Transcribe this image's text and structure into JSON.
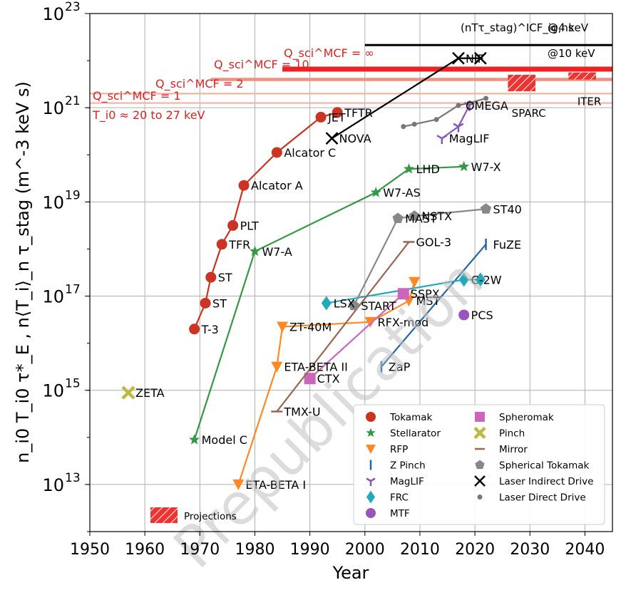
{
  "chart_data": {
    "type": "scatter",
    "title": "",
    "xlabel": "Year",
    "ylabel": "n_i0 T_i0 τ*_E ,  n⟨T_i⟩_n τ_stag (m^-3 keV s)",
    "xlim": [
      1950,
      2045
    ],
    "ylim_log10": [
      12,
      23
    ],
    "y_scale": "log",
    "grid": true,
    "watermark": "Prepublication",
    "x_ticks": [
      "1950",
      "1960",
      "1970",
      "1980",
      "1990",
      "2000",
      "2010",
      "2020",
      "2030",
      "2040"
    ],
    "y_ticks": [
      {
        "exp": 13,
        "label": "10",
        "sup": "13"
      },
      {
        "exp": 15,
        "label": "10",
        "sup": "15"
      },
      {
        "exp": 17,
        "label": "10",
        "sup": "17"
      },
      {
        "exp": 19,
        "label": "10",
        "sup": "19"
      },
      {
        "exp": 21,
        "label": "10",
        "sup": "21"
      },
      {
        "exp": 23,
        "label": "10",
        "sup": "23"
      }
    ],
    "reference_lines": [
      {
        "name": "ICF ignition @4 keV",
        "label": "@4 keV",
        "y_exp": 22.33,
        "x0": 2000,
        "x1": 2045,
        "color": "#000000",
        "style": "solid"
      },
      {
        "name": "ICF ignition @10 keV",
        "label": "@10 keV",
        "y_exp": 21.85,
        "x0": 2000,
        "x1": 2045,
        "color": "#000000",
        "style": "dotted"
      },
      {
        "name": "Q_sci = infinity",
        "y_exp": 21.82,
        "x0": 1985,
        "x1": 2045,
        "color": "#ee2222",
        "style": "thick"
      },
      {
        "name": "Q_sci = 10",
        "y_exp": 21.6,
        "x0": 1972,
        "x1": 2045,
        "color": "#f09080",
        "style": "medium"
      },
      {
        "name": "Q_sci = 2",
        "y_exp": 21.3,
        "x0": 1950,
        "x1": 2045,
        "color": "#f7b0a5",
        "style": "thin"
      },
      {
        "name": "Q_sci = 1",
        "y_exp": 21.1,
        "x0": 1950,
        "x1": 2045,
        "color": "#f7b0a5",
        "style": "thin"
      }
    ],
    "annotations_mcf": {
      "q_inf": "Q_sci^MCF = ∞",
      "q10": "Q_sci^MCF = 10",
      "q2": "Q_sci^MCF = 2",
      "q1": "Q_sci^MCF = 1",
      "temp": "T_i0 ≈ 20 to 27 keV",
      "icf": "(nTτ_stag)^ICF_ig,hs"
    },
    "series": [
      {
        "name": "Tokamak",
        "marker": "circle",
        "color": "#cc3322",
        "line": true,
        "points": [
          {
            "x": 1969,
            "y_exp": 16.3,
            "label": "T-3"
          },
          {
            "x": 1971,
            "y_exp": 16.85,
            "label": "ST"
          },
          {
            "x": 1972,
            "y_exp": 17.4,
            "label": "ST"
          },
          {
            "x": 1974,
            "y_exp": 18.1,
            "label": "TFR"
          },
          {
            "x": 1976,
            "y_exp": 18.5,
            "label": "PLT"
          },
          {
            "x": 1978,
            "y_exp": 19.35,
            "label": "Alcator A"
          },
          {
            "x": 1984,
            "y_exp": 20.05,
            "label": "Alcator C"
          },
          {
            "x": 1992,
            "y_exp": 20.8,
            "label": "JET"
          },
          {
            "x": 1995,
            "y_exp": 20.9,
            "label": "TFTR"
          }
        ]
      },
      {
        "name": "Stellarator",
        "marker": "star",
        "color": "#339944",
        "line": true,
        "points": [
          {
            "x": 1969,
            "y_exp": 13.95,
            "label": "Model C"
          },
          {
            "x": 1980,
            "y_exp": 17.95,
            "label": "W7-A"
          },
          {
            "x": 2002,
            "y_exp": 19.2,
            "label": "W7-AS"
          },
          {
            "x": 2008,
            "y_exp": 19.7,
            "label": "LHD"
          },
          {
            "x": 2018,
            "y_exp": 19.75,
            "label": "W7-X"
          }
        ]
      },
      {
        "name": "RFP",
        "marker": "triangle-down",
        "color": "#ff8822",
        "line": true,
        "points": [
          {
            "x": 1977,
            "y_exp": 13.0,
            "label": "ETA-BETA I"
          },
          {
            "x": 1984,
            "y_exp": 15.5,
            "label": "ETA-BETA II"
          },
          {
            "x": 1985,
            "y_exp": 16.35,
            "label": "ZT-40M"
          },
          {
            "x": 2001,
            "y_exp": 16.45,
            "label": "RFX-mod"
          },
          {
            "x": 2008,
            "y_exp": 16.9,
            "label": "MST"
          },
          {
            "x": 2009,
            "y_exp": 17.3,
            "label": ""
          }
        ]
      },
      {
        "name": "Z Pinch",
        "marker": "vline",
        "color": "#2266aa",
        "line": true,
        "points": [
          {
            "x": 2003,
            "y_exp": 15.5,
            "label": "ZaP"
          },
          {
            "x": 2022,
            "y_exp": 18.1,
            "label": "FuZE"
          }
        ]
      },
      {
        "name": "MagLIF",
        "marker": "tri",
        "color": "#8855bb",
        "line": true,
        "points": [
          {
            "x": 2014,
            "y_exp": 20.35,
            "label": "MagLIF"
          },
          {
            "x": 2017,
            "y_exp": 20.6,
            "label": ""
          },
          {
            "x": 2019,
            "y_exp": 21.05,
            "label": ""
          }
        ]
      },
      {
        "name": "FRC",
        "marker": "diamond",
        "color": "#22aabb",
        "line": true,
        "points": [
          {
            "x": 1993,
            "y_exp": 16.85,
            "label": "LSX"
          },
          {
            "x": 2018,
            "y_exp": 17.35,
            "label": "C-2W"
          },
          {
            "x": 2021,
            "y_exp": 17.35,
            "label": ""
          }
        ]
      },
      {
        "name": "MTF",
        "marker": "circle",
        "color": "#9955bb",
        "line": false,
        "points": [
          {
            "x": 2018,
            "y_exp": 16.6,
            "label": "PCS"
          }
        ]
      },
      {
        "name": "Spheromak",
        "marker": "square",
        "color": "#cc66bb",
        "line": true,
        "points": [
          {
            "x": 1990,
            "y_exp": 15.25,
            "label": "CTX"
          },
          {
            "x": 2007,
            "y_exp": 17.05,
            "label": "SSPX"
          }
        ]
      },
      {
        "name": "Pinch",
        "marker": "x-thick",
        "color": "#bbbb44",
        "line": false,
        "points": [
          {
            "x": 1957,
            "y_exp": 14.95,
            "label": "ZETA"
          }
        ]
      },
      {
        "name": "Mirror",
        "marker": "hline",
        "color": "#996655",
        "line": true,
        "points": [
          {
            "x": 1984,
            "y_exp": 14.55,
            "label": "TMX-U"
          },
          {
            "x": 2008,
            "y_exp": 18.15,
            "label": "GOL-3"
          }
        ]
      },
      {
        "name": "Spherical Tokamak",
        "marker": "pentagon",
        "color": "#888888",
        "line": true,
        "points": [
          {
            "x": 1998,
            "y_exp": 16.8,
            "label": "START"
          },
          {
            "x": 2006,
            "y_exp": 18.65,
            "label": "MAST"
          },
          {
            "x": 2009,
            "y_exp": 18.7,
            "label": "NSTX"
          },
          {
            "x": 2022,
            "y_exp": 18.85,
            "label": "ST40"
          }
        ]
      },
      {
        "name": "Laser Indirect Drive",
        "marker": "x",
        "color": "#000000",
        "line": true,
        "points": [
          {
            "x": 1994,
            "y_exp": 20.35,
            "label": "NOVA"
          },
          {
            "x": 2017,
            "y_exp": 22.05,
            "label": "NIF"
          },
          {
            "x": 2021,
            "y_exp": 22.05,
            "label": ""
          }
        ]
      },
      {
        "name": "Laser Direct Drive",
        "marker": "dot",
        "color": "#777777",
        "line": true,
        "points": [
          {
            "x": 2007,
            "y_exp": 20.6,
            "label": ""
          },
          {
            "x": 2009,
            "y_exp": 20.65,
            "label": ""
          },
          {
            "x": 2013,
            "y_exp": 20.75,
            "label": ""
          },
          {
            "x": 2017,
            "y_exp": 21.05,
            "label": "OMEGA"
          },
          {
            "x": 2019,
            "y_exp": 21.1,
            "label": ""
          },
          {
            "x": 2022,
            "y_exp": 21.2,
            "label": ""
          }
        ]
      }
    ],
    "projections": [
      {
        "name": "SPARC",
        "x0": 2026,
        "x1": 2031,
        "y0_exp": 21.35,
        "y1_exp": 21.7
      },
      {
        "name": "ITER",
        "x0": 2037,
        "x1": 2042,
        "y0_exp": 21.6,
        "y1_exp": 21.75
      }
    ],
    "legend": {
      "position": "lower-right",
      "entries": [
        "Tokamak",
        "Stellarator",
        "RFP",
        "Z Pinch",
        "MagLIF",
        "FRC",
        "MTF",
        "Spheromak",
        "Pinch",
        "Mirror",
        "Spherical Tokamak",
        "Laser Indirect Drive",
        "Laser Direct Drive"
      ],
      "projections_label": "Projections"
    }
  }
}
